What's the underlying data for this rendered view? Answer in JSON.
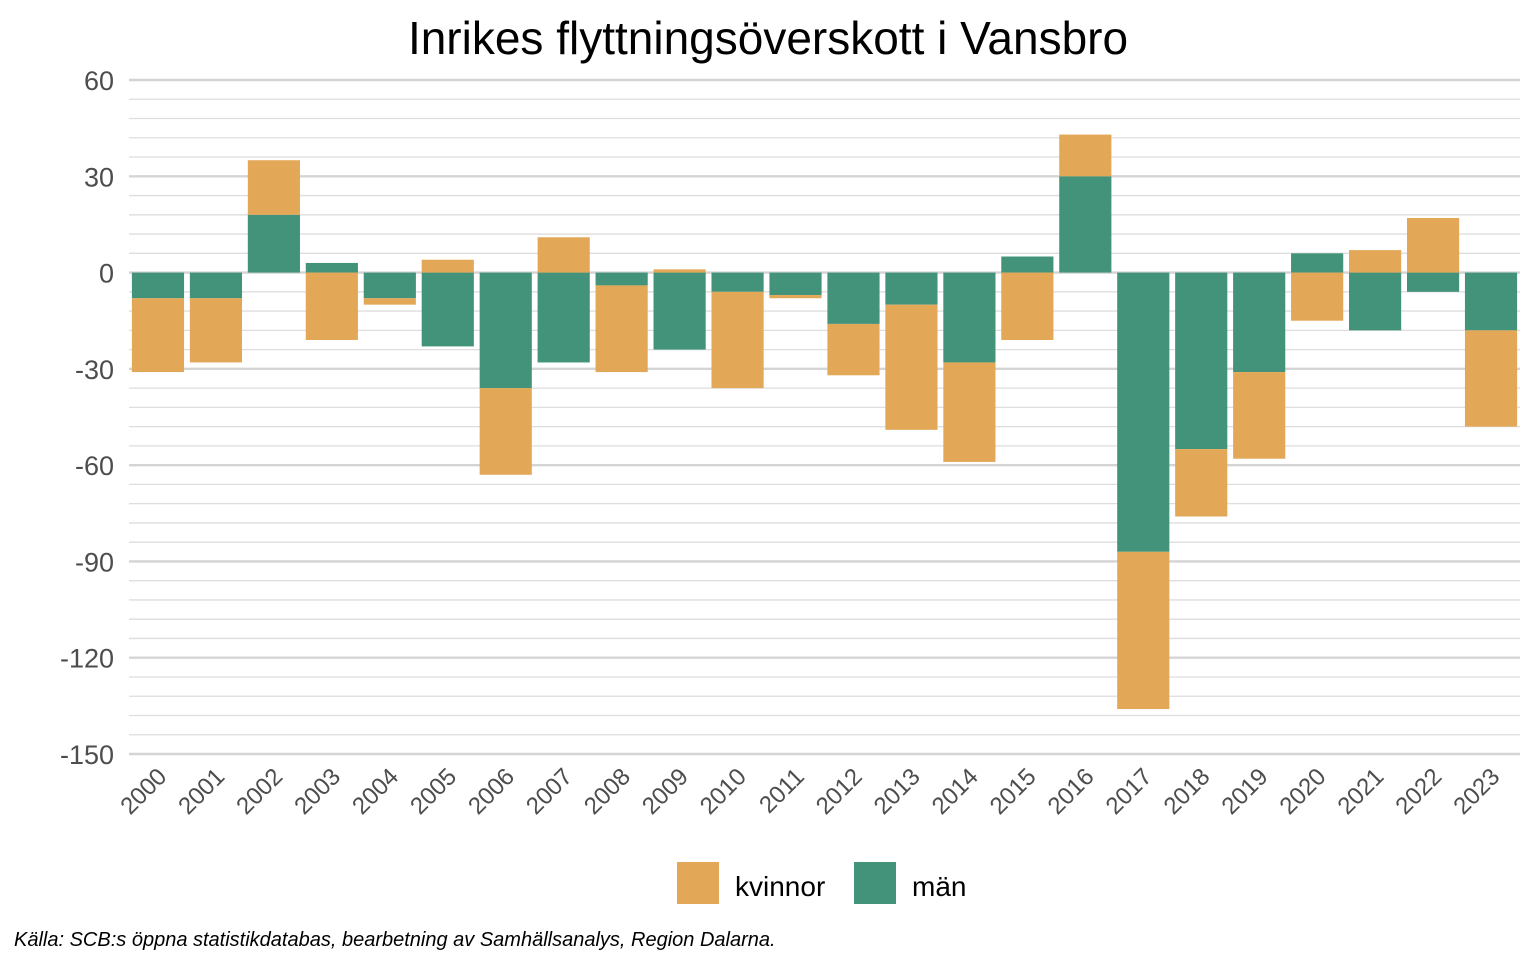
{
  "chart_data": {
    "type": "bar",
    "stacked": true,
    "title": "Inrikes flyttningsöverskott i Vansbro",
    "xlabel": "",
    "ylabel": "",
    "ylim": [
      -150,
      60
    ],
    "y_ticks": [
      "60",
      "30",
      "0",
      "-30",
      "-60",
      "-90",
      "-120",
      "-150"
    ],
    "y_tick_values": [
      60,
      30,
      0,
      -30,
      -60,
      -90,
      -120,
      -150
    ],
    "categories": [
      "2000",
      "2001",
      "2002",
      "2003",
      "2004",
      "2005",
      "2006",
      "2007",
      "2008",
      "2009",
      "2010",
      "2011",
      "2012",
      "2013",
      "2014",
      "2015",
      "2016",
      "2017",
      "2018",
      "2019",
      "2020",
      "2021",
      "2022",
      "2023"
    ],
    "series": [
      {
        "name": "män",
        "color": "#43927a",
        "values": [
          -8,
          -8,
          18,
          3,
          -8,
          -23,
          -36,
          -28,
          -4,
          -24,
          -6,
          -7,
          -16,
          -10,
          -28,
          5,
          30,
          -87,
          -55,
          -31,
          6,
          -18,
          -6,
          -18
        ]
      },
      {
        "name": "kvinnor",
        "color": "#e3a857",
        "values": [
          -23,
          -20,
          17,
          -21,
          -2,
          4,
          -27,
          11,
          -27,
          1,
          -30,
          -1,
          -16,
          -39,
          -31,
          -21,
          13,
          -49,
          -21,
          -27,
          -15,
          7,
          17,
          -30
        ]
      }
    ],
    "legend": {
      "placement": "bottom",
      "items": [
        "kvinnor",
        "män"
      ]
    },
    "grid": true,
    "caption": "Källa: SCB:s öppna statistikdatabas, bearbetning av Samhällsanalys, Region Dalarna."
  }
}
